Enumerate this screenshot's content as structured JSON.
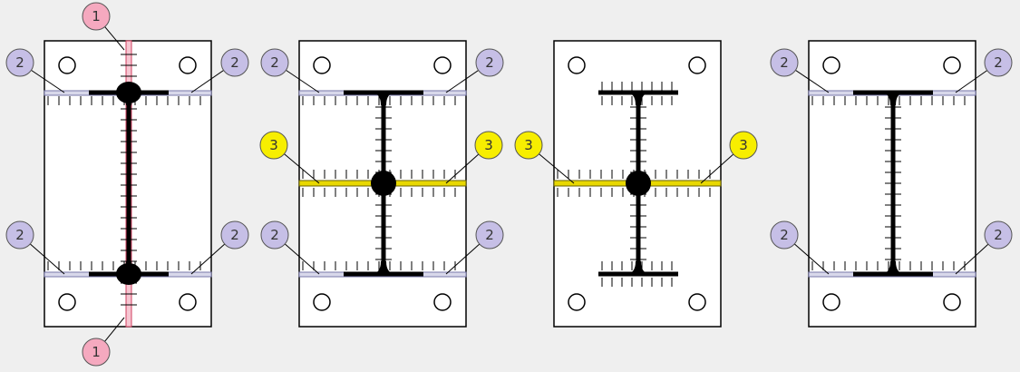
{
  "colors": {
    "background": "#efefef",
    "plate_fill": "#ffffff",
    "outline": "#000000",
    "callout_1": "#f5a9bf",
    "callout_2": "#c6bfe6",
    "callout_3": "#f7ee00",
    "seam_1": "#d04060",
    "seam_3": "#e8d800",
    "seam_2": "#a8a8c8"
  },
  "callouts": {
    "label_1": "1",
    "label_2": "2",
    "label_3": "3"
  },
  "panels": [
    {
      "id": "panel-1",
      "features": [
        "vertical-cut-1",
        "flange-cut-2"
      ]
    },
    {
      "id": "panel-2",
      "features": [
        "flange-cut-2",
        "web-cut-3"
      ]
    },
    {
      "id": "panel-3",
      "features": [
        "web-cut-3"
      ]
    },
    {
      "id": "panel-4",
      "features": [
        "flange-cut-2"
      ]
    }
  ]
}
